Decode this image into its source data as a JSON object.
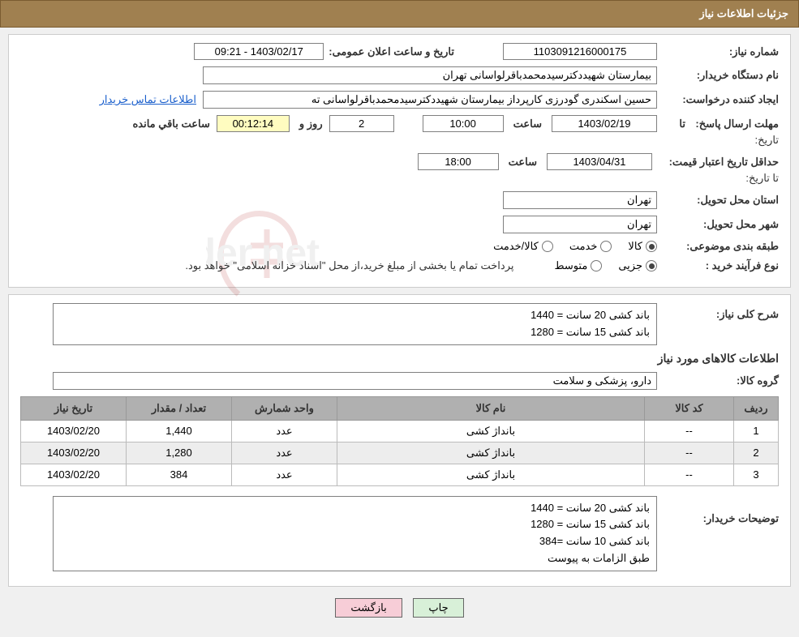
{
  "header": {
    "title": "جزئیات اطلاعات نیاز"
  },
  "info": {
    "need_no_label": "شماره نیاز:",
    "need_no": "1103091216000175",
    "announce_label": "تاریخ و ساعت اعلان عمومی:",
    "announce_value": "1403/02/17 - 09:21",
    "buyer_org_label": "نام دستگاه خریدار:",
    "buyer_org": "بیمارستان شهیددکترسیدمحمدباقرلواسانی تهران",
    "requester_label": "ایجاد کننده درخواست:",
    "requester": "حسین اسکندری گودرزی کارپرداز بیمارستان شهیددکترسیدمحمدباقرلواسانی ته",
    "contact_link": "اطلاعات تماس خریدار",
    "response_due_label": "مهلت ارسال پاسخ:",
    "to_date_label": "تا تاریخ:",
    "response_date": "1403/02/19",
    "hour_label": "ساعت",
    "response_hour": "10:00",
    "days_left": "2",
    "days_word": "روز و",
    "time_left": "00:12:14",
    "time_left_word": "ساعت باقي مانده",
    "validity_label": "حداقل تاریخ اعتبار قیمت:",
    "validity_date": "1403/04/31",
    "validity_hour": "18:00",
    "delivery_province_label": "استان محل تحویل:",
    "delivery_province": "تهران",
    "delivery_city_label": "شهر محل تحویل:",
    "delivery_city": "تهران",
    "category_label": "طبقه بندی موضوعی:",
    "opt_goods": "کالا",
    "opt_service": "خدمت",
    "opt_goods_service": "کالا/خدمت",
    "purchase_type_label": "نوع فرآیند خرید :",
    "opt_minor": "جزیی",
    "opt_medium": "متوسط",
    "payment_note": "پرداخت تمام یا بخشی از مبلغ خرید،از محل \"اسناد خزانه اسلامی\" خواهد بود."
  },
  "need": {
    "summary_label": "شرح کلی نیاز:",
    "summary_text": "باند کشی 20 سانت = 1440\nباند کشی 15 سانت = 1280",
    "items_heading": "اطلاعات کالاهای مورد نیاز",
    "group_label": "گروه کالا:",
    "group_value": "دارو، پزشکی و سلامت"
  },
  "table": {
    "cols": [
      "ردیف",
      "کد کالا",
      "نام کالا",
      "واحد شمارش",
      "تعداد / مقدار",
      "تاریخ نیاز"
    ],
    "rows": [
      [
        "1",
        "--",
        "بانداژ کشی",
        "عدد",
        "1,440",
        "1403/02/20"
      ],
      [
        "2",
        "--",
        "بانداژ کشی",
        "عدد",
        "1,280",
        "1403/02/20"
      ],
      [
        "3",
        "--",
        "بانداژ کشی",
        "عدد",
        "384",
        "1403/02/20"
      ]
    ]
  },
  "notes": {
    "label": "توضیحات خریدار:",
    "text": "باند کشی 20 سانت = 1440\nباند کشی 15 سانت = 1280\nباند کشی 10 سانت =384\nطبق الزامات به پیوست"
  },
  "buttons": {
    "print": "چاپ",
    "back": "بازگشت"
  },
  "colors": {
    "header_bg": "#a08050",
    "border": "#808080",
    "th_bg": "#b0b0b0",
    "row_alt": "#ededed",
    "link": "#1a5fcc",
    "btn_print": "#d8f0d8",
    "btn_back": "#f7cdd7",
    "watermark": "#b02020"
  }
}
